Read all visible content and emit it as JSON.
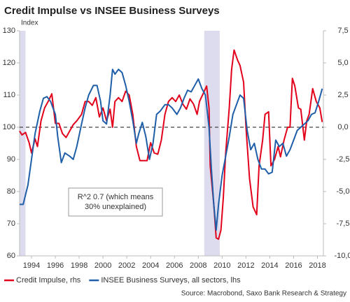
{
  "chart_data": {
    "type": "line",
    "title": "Credit Impulse vs INSEE Business Surveys",
    "y_label": "Index",
    "annotation_lines": [
      "R^2 0.7 (which means",
      "30% unexplained)"
    ],
    "source": "Source: Macrobond, Saxo Bank Research & Strategy",
    "xlim": [
      1993.0,
      2018.5
    ],
    "xticks": [
      1994,
      1996,
      1998,
      2000,
      2002,
      2004,
      2006,
      2008,
      2010,
      2012,
      2014,
      2016,
      2018
    ],
    "ylim": [
      60,
      130
    ],
    "yticks": [
      60,
      70,
      80,
      90,
      100,
      110,
      120,
      130
    ],
    "y2lim": [
      -10,
      7.5
    ],
    "y2ticks": [
      {
        "value": -10,
        "label": "-10,0"
      },
      {
        "value": -7.5,
        "label": "-7,5"
      },
      {
        "value": -5,
        "label": "-5,0"
      },
      {
        "value": -2.5,
        "label": "-2,5"
      },
      {
        "value": 0,
        "label": "0,0"
      },
      {
        "value": 2.5,
        "label": "2,5"
      },
      {
        "value": 5,
        "label": "5,0"
      },
      {
        "value": 7.5,
        "label": "7,5"
      }
    ],
    "y2_reference_line": 0,
    "shaded_periods": [
      [
        1993.0,
        1993.5
      ],
      [
        2008.5,
        2009.8
      ]
    ],
    "shade_color": "#dcdcee",
    "series": [
      {
        "name": "Credit Impulse, rhs",
        "color": "#e3001b",
        "axis": "y2",
        "x": [
          1993.0,
          1993.2,
          1993.5,
          1993.8,
          1994.0,
          1994.3,
          1994.5,
          1994.8,
          1995.1,
          1995.4,
          1995.7,
          1996.0,
          1996.3,
          1996.6,
          1996.9,
          1997.2,
          1997.5,
          1997.8,
          1998.2,
          1998.5,
          1998.8,
          1999.1,
          1999.4,
          1999.7,
          2000.0,
          2000.3,
          2000.6,
          2000.8,
          2001.0,
          2001.3,
          2001.6,
          2001.9,
          2002.2,
          2002.5,
          2002.8,
          2003.1,
          2003.4,
          2003.7,
          2004.0,
          2004.3,
          2004.6,
          2004.9,
          2005.2,
          2005.5,
          2005.8,
          2006.1,
          2006.4,
          2006.7,
          2007.0,
          2007.3,
          2007.6,
          2007.9,
          2008.1,
          2008.4,
          2008.7,
          2008.9,
          2009.0,
          2009.3,
          2009.5,
          2009.7,
          2009.9,
          2010.1,
          2010.3,
          2010.6,
          2010.8,
          2011.0,
          2011.3,
          2011.5,
          2011.8,
          2012.0,
          2012.3,
          2012.6,
          2012.9,
          2013.1,
          2013.4,
          2013.6,
          2013.9,
          2014.1,
          2014.4,
          2014.7,
          2014.9,
          2015.2,
          2015.5,
          2015.7,
          2015.9,
          2016.1,
          2016.4,
          2016.6,
          2016.9,
          2017.1,
          2017.3,
          2017.6,
          2017.9,
          2018.2,
          2018.4
        ],
        "values": [
          -0.3,
          -0.6,
          -0.4,
          -1.2,
          -2.0,
          -0.9,
          -1.5,
          0.5,
          1.5,
          2.0,
          2.6,
          0.3,
          0.3,
          -0.5,
          -0.8,
          -0.3,
          0.2,
          0.5,
          1.0,
          2.0,
          2.0,
          1.7,
          2.3,
          0.8,
          1.5,
          0.5,
          1.4,
          0.0,
          2.0,
          2.3,
          2.0,
          2.8,
          2.5,
          1.0,
          -1.5,
          -2.6,
          -2.6,
          -2.6,
          -1.2,
          -2.0,
          -2.1,
          -1.0,
          1.0,
          2.0,
          2.3,
          2.0,
          2.5,
          1.8,
          1.4,
          2.2,
          1.8,
          1.0,
          2.0,
          2.6,
          3.2,
          1.5,
          -3.0,
          -6.0,
          -8.6,
          -8.7,
          -8.0,
          -5.5,
          -2.0,
          1.5,
          4.5,
          6.0,
          5.2,
          4.8,
          3.5,
          0.0,
          -4.0,
          -6.2,
          -6.8,
          -3.0,
          -1.0,
          1.0,
          1.2,
          -3.0,
          -2.5,
          -1.5,
          -2.3,
          -1.0,
          0.0,
          0.0,
          3.8,
          3.2,
          1.5,
          1.4,
          -1.0,
          0.5,
          1.0,
          3.0,
          2.0,
          1.5,
          0.4
        ]
      },
      {
        "name": "INSEE Business Surveys, all sectors, lhs",
        "color": "#1f5ea8",
        "axis": "y",
        "x": [
          1993.0,
          1993.3,
          1993.7,
          1994.0,
          1994.3,
          1994.7,
          1995.0,
          1995.3,
          1995.6,
          1996.0,
          1996.2,
          1996.5,
          1996.8,
          1997.2,
          1997.5,
          1997.8,
          1998.2,
          1998.5,
          1998.8,
          1999.2,
          1999.5,
          1999.8,
          2000.0,
          2000.3,
          2000.6,
          2000.8,
          2001.0,
          2001.3,
          2001.6,
          2001.9,
          2002.2,
          2002.5,
          2002.8,
          2003.0,
          2003.3,
          2003.6,
          2003.9,
          2004.2,
          2004.5,
          2004.8,
          2005.2,
          2005.5,
          2005.8,
          2006.2,
          2006.5,
          2006.8,
          2007.1,
          2007.4,
          2007.7,
          2008.0,
          2008.3,
          2008.6,
          2008.9,
          2009.1,
          2009.3,
          2009.5,
          2009.7,
          2010.0,
          2010.3,
          2010.6,
          2010.9,
          2011.2,
          2011.5,
          2011.8,
          2012.1,
          2012.4,
          2012.7,
          2013.0,
          2013.3,
          2013.6,
          2013.9,
          2014.2,
          2014.5,
          2014.8,
          2015.1,
          2015.4,
          2015.7,
          2016.0,
          2016.3,
          2016.6,
          2016.9,
          2017.2,
          2017.5,
          2017.8,
          2018.1,
          2018.4
        ],
        "values": [
          76,
          76,
          82,
          90,
          98,
          105,
          109,
          109.5,
          108,
          104,
          97,
          89,
          92,
          91,
          90,
          94,
          101,
          106,
          110,
          113,
          113,
          108,
          102,
          101,
          110,
          118,
          116.5,
          118,
          117,
          113,
          108,
          102,
          95,
          98,
          101.5,
          97,
          90,
          95,
          104,
          105,
          107,
          107,
          106,
          104,
          106,
          109,
          111.5,
          111,
          113,
          115,
          112,
          110,
          100,
          87,
          76,
          68,
          76,
          85,
          91,
          97,
          104,
          107,
          110,
          109,
          99,
          93,
          95,
          90,
          87,
          87,
          85.5,
          86,
          96,
          94,
          95,
          91,
          93,
          96,
          99,
          100,
          101,
          102,
          104,
          104.5,
          108,
          112
        ]
      }
    ]
  }
}
